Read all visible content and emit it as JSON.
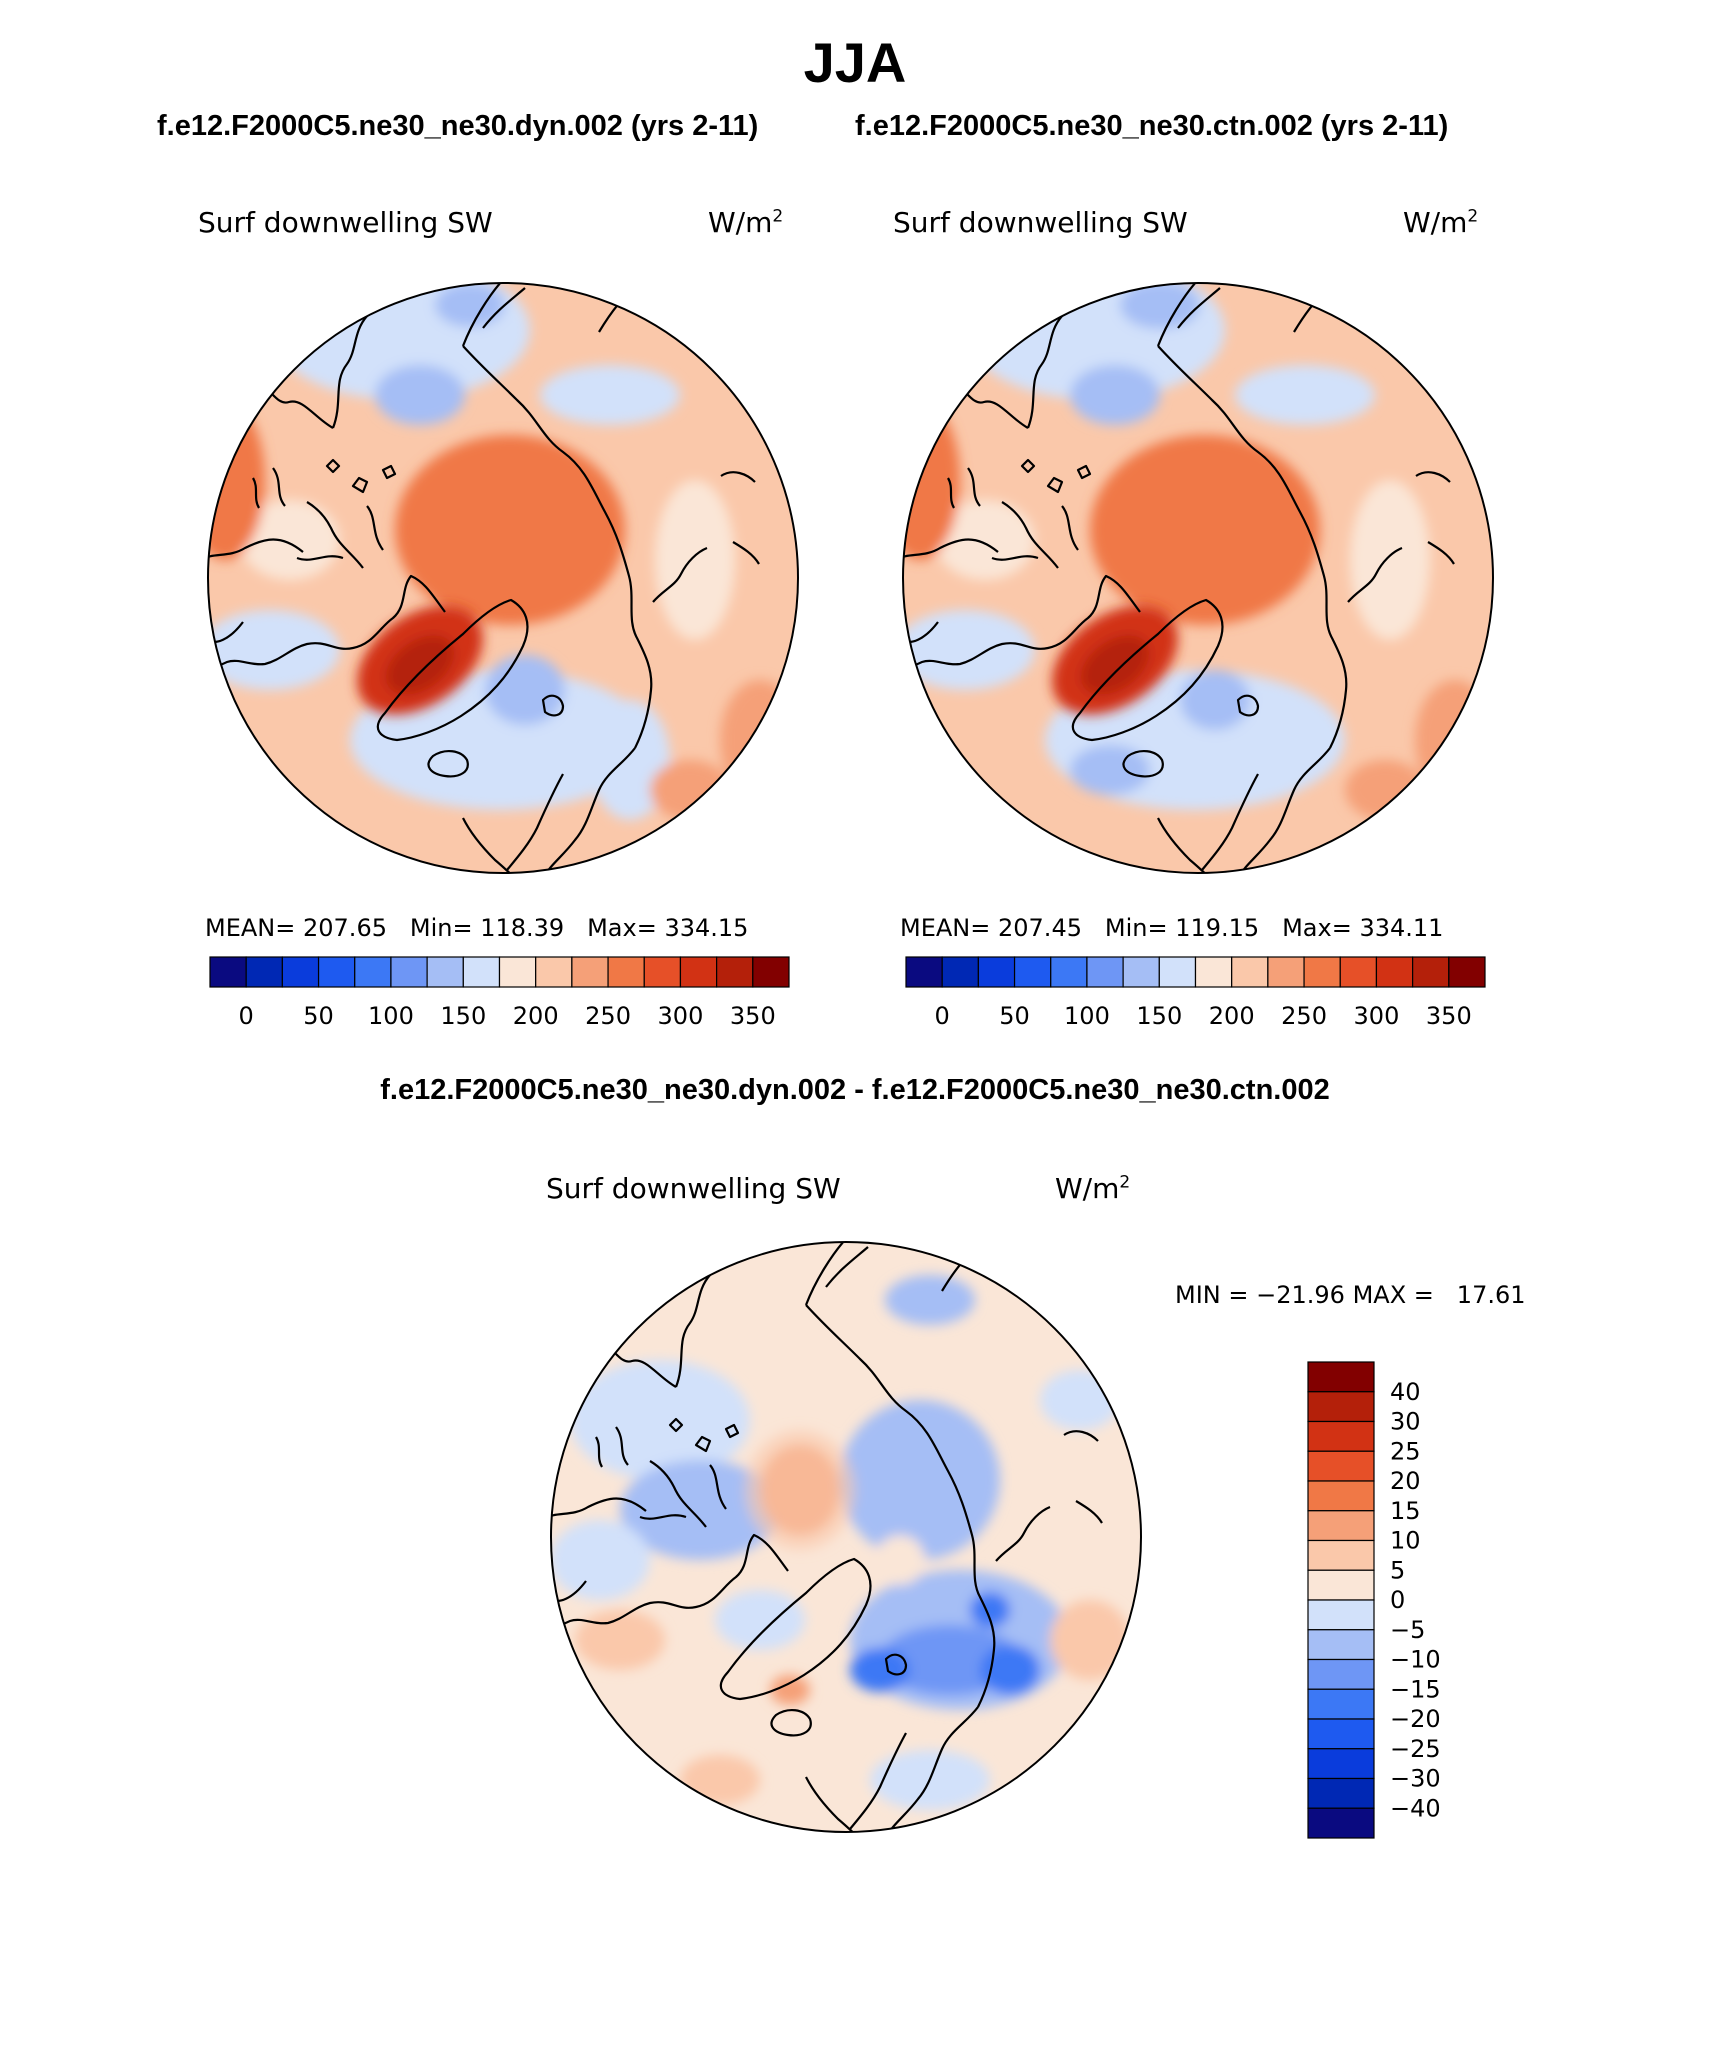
{
  "page": {
    "season": "JJA",
    "case_a_title": "f.e12.F2000C5.ne30_ne30.dyn.002 (yrs 2-11)",
    "case_b_title": "f.e12.F2000C5.ne30_ne30.ctn.002 (yrs 2-11)",
    "difference_title": "f.e12.F2000C5.ne30_ne30.dyn.002 - f.e12.F2000C5.ne30_ne30.ctn.002"
  },
  "panels": [
    {
      "variable": "Surf downwelling SW",
      "units_base": "W/m",
      "units_exp": "2",
      "mean_label": "MEAN=",
      "mean": "207.65",
      "min_label": "Min=",
      "min": "118.39",
      "max_label": "Max=",
      "max": "334.15"
    },
    {
      "variable": "Surf downwelling SW",
      "units_base": "W/m",
      "units_exp": "2",
      "mean_label": "MEAN=",
      "mean": "207.45",
      "min_label": "Min=",
      "min": "119.15",
      "max_label": "Max=",
      "max": "334.11"
    },
    {
      "variable": "Surf downwelling SW",
      "units_base": "W/m",
      "units_exp": "2",
      "min_label": "MIN =",
      "min": "−21.96",
      "max_label": "MAX =",
      "max": "17.61"
    }
  ],
  "colorbars": {
    "absolute": {
      "colors": [
        "#0a0a80",
        "#0028b4",
        "#0a3cdc",
        "#1e5af0",
        "#3c78f5",
        "#6e96f5",
        "#a5bef5",
        "#d2e1fa",
        "#fae6d7",
        "#fac8aa",
        "#f5a078",
        "#f07846",
        "#e65028",
        "#d23214",
        "#b4200a",
        "#820000"
      ],
      "tick_labels": [
        "0",
        "50",
        "100",
        "150",
        "200",
        "250",
        "300",
        "350"
      ]
    },
    "difference": {
      "colors": [
        "#820000",
        "#b4200a",
        "#d23214",
        "#e65028",
        "#f07846",
        "#f5a078",
        "#fac8aa",
        "#fae6d7",
        "#d2e1fa",
        "#a5bef5",
        "#6e96f5",
        "#3c78f5",
        "#1e5af0",
        "#0a3cdc",
        "#0028b4",
        "#0a0a80"
      ],
      "tick_labels": [
        "40",
        "30",
        "25",
        "20",
        "15",
        "10",
        "5",
        "0",
        "−5",
        "−10",
        "−15",
        "−20",
        "−25",
        "−30",
        "−40"
      ]
    }
  },
  "maps": {
    "projection": "north polar stereographic",
    "field_colors": {
      "mean_background": "#fac8aa",
      "cloudy_ocean": "#d2e1fa",
      "cloudy_pacific": "#a5bef5",
      "arctic_high": "#f07846",
      "greenland_peak": "#d23214",
      "greenland_core": "#b4200a",
      "subtropic_warm": "#f5a078",
      "light_land": "#fae6d7"
    },
    "diff_colors": {
      "neutral_pos": "#fae6d7",
      "neutral_neg": "#d2e1fa",
      "mid_pos": "#fac8aa",
      "mid_neg": "#a5bef5",
      "strong_pos": "#f5a078",
      "strong_neg": "#6e96f5",
      "extreme_neg": "#3c78f5"
    }
  }
}
